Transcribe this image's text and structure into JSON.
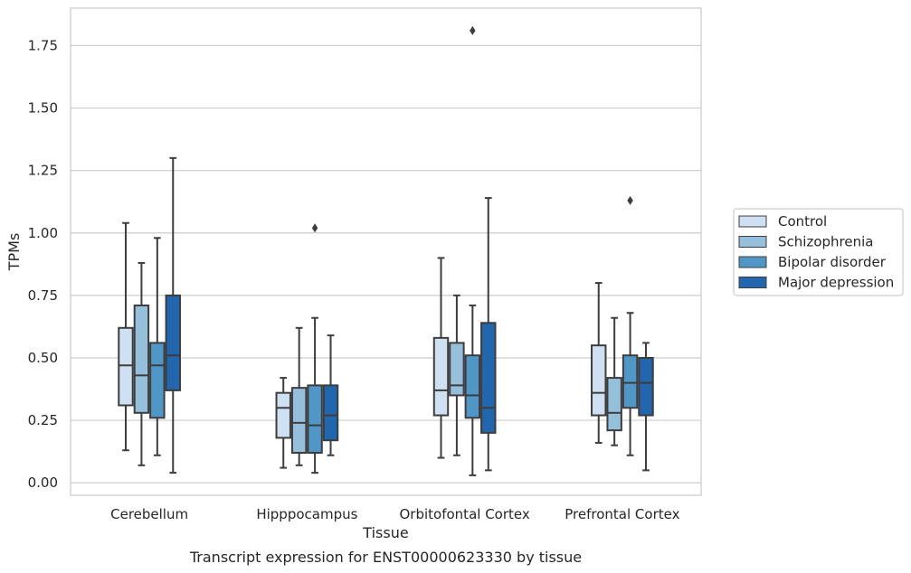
{
  "chart_data": {
    "type": "boxplot",
    "title": "",
    "caption": "Transcript expression for ENST00000623330 by tissue",
    "xlabel": "Tissue",
    "ylabel": "TPMs",
    "ylim": [
      -0.05,
      1.9
    ],
    "yticks": [
      0.0,
      0.25,
      0.5,
      0.75,
      1.0,
      1.25,
      1.5,
      1.75
    ],
    "ytick_labels": [
      "0.00",
      "0.25",
      "0.50",
      "0.75",
      "1.00",
      "1.25",
      "1.50",
      "1.75"
    ],
    "grid": "horizontal",
    "legend_position": "right",
    "categories": [
      "Cerebellum",
      "Hipppocampus",
      "Orbitofontal Cortex",
      "Prefrontal Cortex"
    ],
    "series": [
      {
        "name": "Control",
        "color": "#cfe0f2",
        "boxes": [
          {
            "whisker_low": 0.13,
            "q1": 0.31,
            "median": 0.47,
            "q3": 0.62,
            "whisker_high": 1.04,
            "outliers": []
          },
          {
            "whisker_low": 0.06,
            "q1": 0.18,
            "median": 0.3,
            "q3": 0.36,
            "whisker_high": 0.42,
            "outliers": []
          },
          {
            "whisker_low": 0.1,
            "q1": 0.27,
            "median": 0.37,
            "q3": 0.58,
            "whisker_high": 0.9,
            "outliers": []
          },
          {
            "whisker_low": 0.16,
            "q1": 0.27,
            "median": 0.36,
            "q3": 0.55,
            "whisker_high": 0.8,
            "outliers": []
          }
        ]
      },
      {
        "name": "Schizophrenia",
        "color": "#95bfdb",
        "boxes": [
          {
            "whisker_low": 0.07,
            "q1": 0.28,
            "median": 0.43,
            "q3": 0.71,
            "whisker_high": 0.88,
            "outliers": []
          },
          {
            "whisker_low": 0.07,
            "q1": 0.12,
            "median": 0.24,
            "q3": 0.38,
            "whisker_high": 0.62,
            "outliers": []
          },
          {
            "whisker_low": 0.11,
            "q1": 0.35,
            "median": 0.39,
            "q3": 0.56,
            "whisker_high": 0.75,
            "outliers": []
          },
          {
            "whisker_low": 0.15,
            "q1": 0.21,
            "median": 0.28,
            "q3": 0.42,
            "whisker_high": 0.66,
            "outliers": []
          }
        ]
      },
      {
        "name": "Bipolar disorder",
        "color": "#5096c6",
        "boxes": [
          {
            "whisker_low": 0.11,
            "q1": 0.26,
            "median": 0.47,
            "q3": 0.56,
            "whisker_high": 0.98,
            "outliers": []
          },
          {
            "whisker_low": 0.04,
            "q1": 0.12,
            "median": 0.23,
            "q3": 0.39,
            "whisker_high": 0.66,
            "outliers": [
              1.02
            ]
          },
          {
            "whisker_low": 0.03,
            "q1": 0.26,
            "median": 0.35,
            "q3": 0.51,
            "whisker_high": 0.71,
            "outliers": [
              1.81
            ]
          },
          {
            "whisker_low": 0.11,
            "q1": 0.3,
            "median": 0.4,
            "q3": 0.51,
            "whisker_high": 0.68,
            "outliers": [
              1.13
            ]
          }
        ]
      },
      {
        "name": "Major depression",
        "color": "#2266ad",
        "boxes": [
          {
            "whisker_low": 0.04,
            "q1": 0.37,
            "median": 0.51,
            "q3": 0.75,
            "whisker_high": 1.3,
            "outliers": []
          },
          {
            "whisker_low": 0.11,
            "q1": 0.17,
            "median": 0.27,
            "q3": 0.39,
            "whisker_high": 0.59,
            "outliers": []
          },
          {
            "whisker_low": 0.05,
            "q1": 0.2,
            "median": 0.3,
            "q3": 0.64,
            "whisker_high": 1.14,
            "outliers": []
          },
          {
            "whisker_low": 0.05,
            "q1": 0.27,
            "median": 0.4,
            "q3": 0.5,
            "whisker_high": 0.56,
            "outliers": []
          }
        ]
      }
    ]
  }
}
